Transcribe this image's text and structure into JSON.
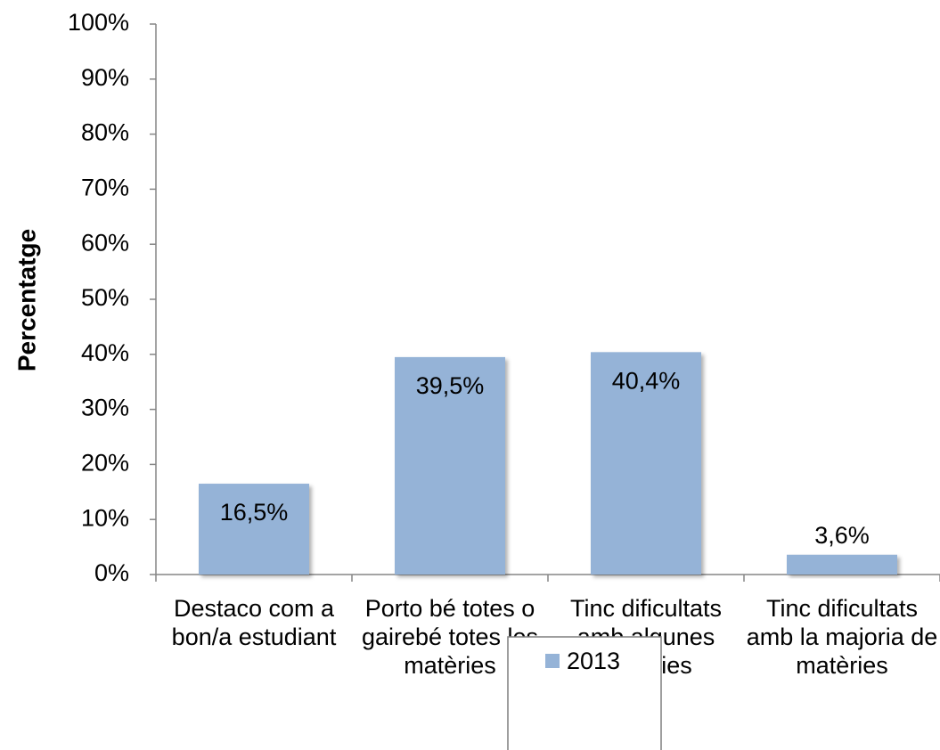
{
  "chart_data": {
    "type": "bar",
    "y_label": "Percentatge",
    "categories": [
      "Destaco com a bon/a estudiant",
      "Porto bé totes o gairebé totes les matèries",
      "Tinc dificultats amb algunes matèries",
      "Tinc dificultats amb la majoria de matèries"
    ],
    "series": [
      {
        "name": "2013",
        "color": "#95b3d7",
        "values": [
          16.5,
          39.5,
          40.4,
          3.6
        ],
        "value_labels": [
          "16,5%",
          "39,5%",
          "40,4%",
          "3,6%"
        ]
      }
    ],
    "ylim": [
      0,
      100
    ],
    "yticks": [
      {
        "value": 0,
        "label": "0%"
      },
      {
        "value": 10,
        "label": "10%"
      },
      {
        "value": 20,
        "label": "20%"
      },
      {
        "value": 30,
        "label": "30%"
      },
      {
        "value": 40,
        "label": "40%"
      },
      {
        "value": 50,
        "label": "50%"
      },
      {
        "value": 60,
        "label": "60%"
      },
      {
        "value": 70,
        "label": "70%"
      },
      {
        "value": 80,
        "label": "80%"
      },
      {
        "value": 90,
        "label": "90%"
      },
      {
        "value": 100,
        "label": "100%"
      }
    ],
    "legend": "bottom"
  }
}
